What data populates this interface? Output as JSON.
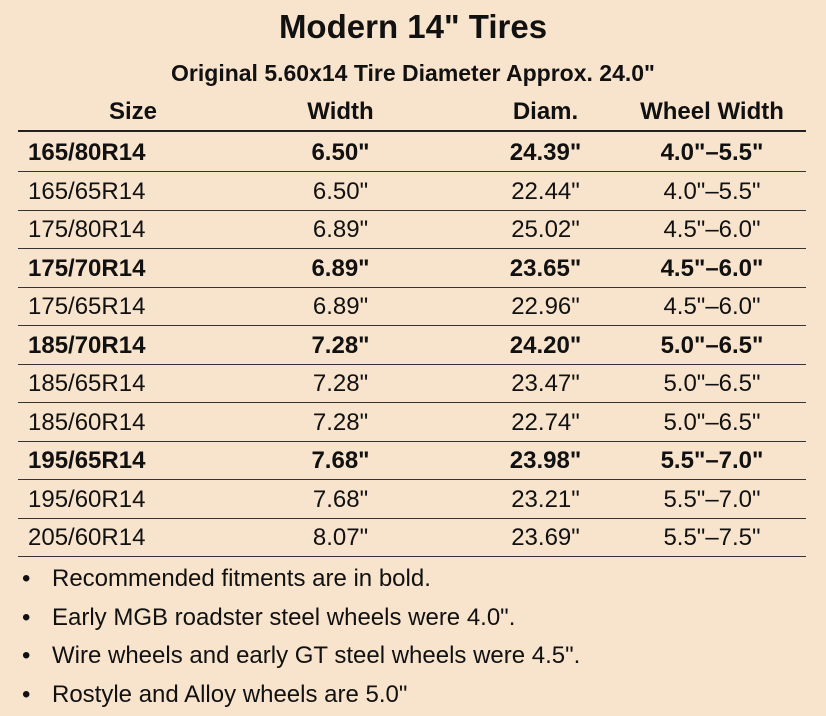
{
  "header": {
    "title": "Modern 14\" Tires",
    "subtitle": "Original 5.60x14 Tire Diameter Approx. 24.0\""
  },
  "table": {
    "columns": [
      "Size",
      "Width",
      "Diam.",
      "Wheel Width"
    ],
    "rows": [
      [
        "165/80R14",
        "6.50\"",
        "24.39\"",
        "4.0\"–5.5\""
      ],
      [
        "165/65R14",
        "6.50\"",
        "22.44\"",
        "4.0\"–5.5\""
      ],
      [
        "175/80R14",
        "6.89\"",
        "25.02\"",
        "4.5\"–6.0\""
      ],
      [
        "175/70R14",
        "6.89\"",
        "23.65\"",
        "4.5\"–6.0\""
      ],
      [
        "175/65R14",
        "6.89\"",
        "22.96\"",
        "4.5\"–6.0\""
      ],
      [
        "185/70R14",
        "7.28\"",
        "24.20\"",
        "5.0\"–6.5\""
      ],
      [
        "185/65R14",
        "7.28\"",
        "23.47\"",
        "5.0\"–6.5\""
      ],
      [
        "185/60R14",
        "7.28\"",
        "22.74\"",
        "5.0\"–6.5\""
      ],
      [
        "195/65R14",
        "7.68\"",
        "23.98\"",
        "5.5\"–7.0\""
      ],
      [
        "195/60R14",
        "7.68\"",
        "23.21\"",
        "5.5\"–7.0\""
      ],
      [
        "205/60R14",
        "8.07\"",
        "23.69\"",
        "5.5\"–7.5\""
      ]
    ],
    "bold_rows": [
      0,
      3,
      5,
      8
    ]
  },
  "notes": [
    "Recommended fitments are in bold.",
    "Early MGB roadster steel wheels were 4.0\".",
    "Wire wheels and early GT steel wheels were 4.5\".",
    "Rostyle and Alloy wheels are 5.0\""
  ]
}
